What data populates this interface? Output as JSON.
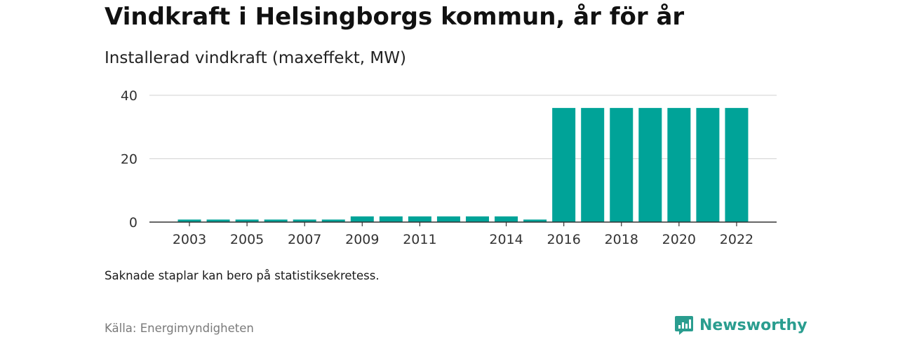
{
  "header": {
    "title": "Vindkraft i Helsingborgs kommun, år för år",
    "subtitle": "Installerad vindkraft (maxeffekt, MW)"
  },
  "footer": {
    "note": "Saknade staplar kan bero på statistiksekretess.",
    "source": "Källa: Energimyndigheten",
    "brand": "Newsworthy"
  },
  "colors": {
    "bar": "#00a398",
    "brand": "#2a9d8f",
    "grid": "#d9d9d9",
    "axis": "#333333"
  },
  "icons": {
    "logo": "newsworthy-logo-icon"
  },
  "chart_data": {
    "type": "bar",
    "categories": [
      "2003",
      "2004",
      "2005",
      "2006",
      "2007",
      "2008",
      "2009",
      "2010",
      "2011",
      "2012",
      "2013",
      "2014",
      "2015",
      "2016",
      "2017",
      "2018",
      "2019",
      "2020",
      "2021",
      "2022"
    ],
    "values": [
      0.8,
      0.8,
      0.8,
      0.8,
      0.8,
      0.8,
      1.8,
      1.8,
      1.8,
      1.8,
      1.8,
      1.8,
      0.8,
      36,
      36,
      36,
      36,
      36,
      36,
      36
    ],
    "x_tick_labels": [
      "2003",
      "2005",
      "2007",
      "2009",
      "2011",
      "2014",
      "2016",
      "2018",
      "2020",
      "2022"
    ],
    "y_ticks": [
      "0",
      "20",
      "40"
    ],
    "ylim": [
      0,
      40
    ],
    "title": "Vindkraft i Helsingborgs kommun, år för år",
    "subtitle": "Installerad vindkraft (maxeffekt, MW)",
    "xlabel": "",
    "ylabel": "",
    "grid": true,
    "legend": "none"
  }
}
